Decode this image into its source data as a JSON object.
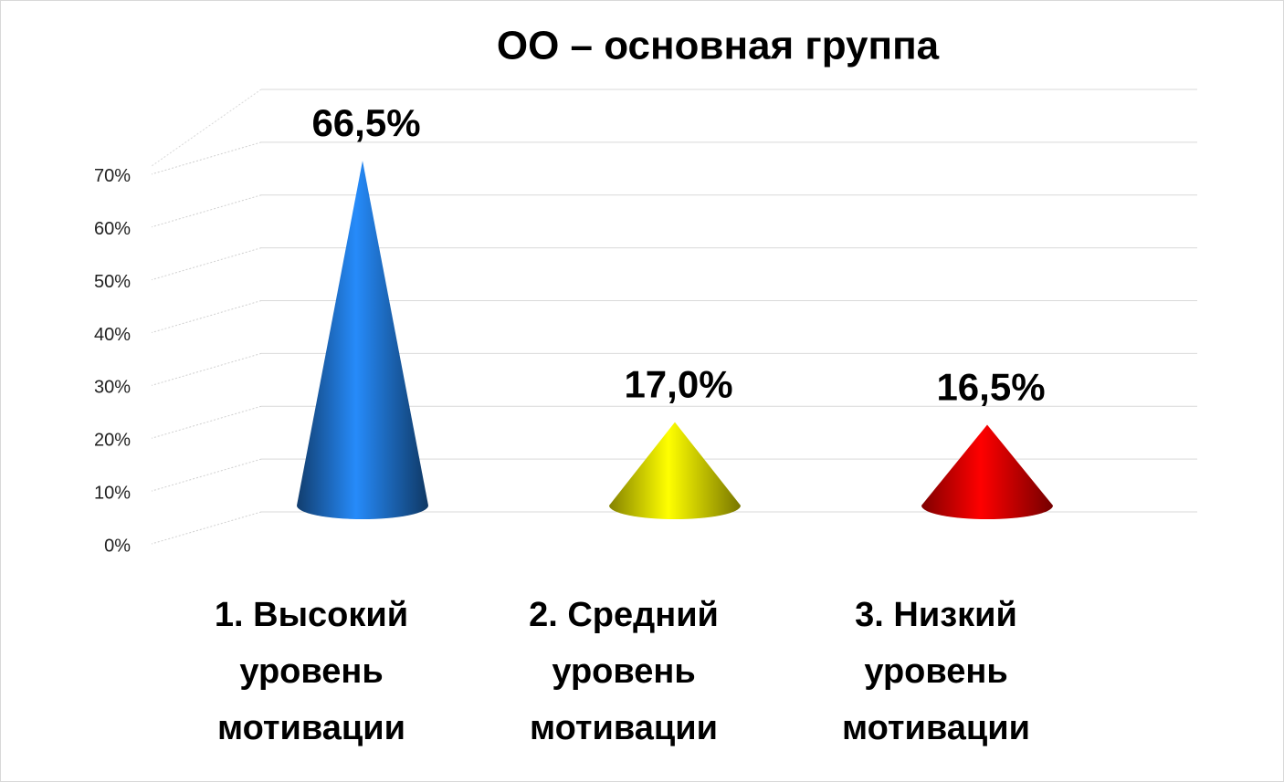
{
  "chart_data": {
    "type": "cone",
    "title": "ОО – основная группа",
    "categories": [
      "1. Высокий уровень мотивации",
      "2. Средний уровень мотивации",
      "3. Низкий уровень мотивации"
    ],
    "values": [
      66.5,
      17.0,
      16.5
    ],
    "value_labels": [
      "66,5%",
      "17,0%",
      "16,5%"
    ],
    "colors": [
      "#1e6fc8",
      "#f0ec00",
      "#e60000"
    ],
    "ylim": [
      0,
      80
    ],
    "yticks": [
      {
        "value": 0,
        "label": "0%"
      },
      {
        "value": 10,
        "label": "10%"
      },
      {
        "value": 20,
        "label": "20%"
      },
      {
        "value": 30,
        "label": "30%"
      },
      {
        "value": 40,
        "label": "40%"
      },
      {
        "value": 50,
        "label": "50%"
      },
      {
        "value": 60,
        "label": "60%"
      },
      {
        "value": 70,
        "label": "70%"
      }
    ],
    "grid": true
  }
}
